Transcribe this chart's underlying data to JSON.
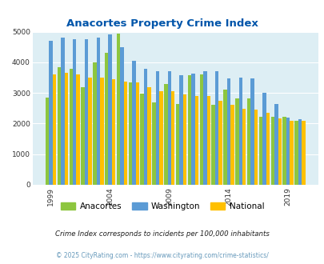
{
  "title": "Anacortes Property Crime Index",
  "years": [
    1999,
    2000,
    2001,
    2002,
    2003,
    2004,
    2005,
    2006,
    2007,
    2008,
    2009,
    2010,
    2011,
    2012,
    2013,
    2014,
    2015,
    2016,
    2017,
    2018,
    2019,
    2020
  ],
  "anacortes": [
    2850,
    3850,
    3800,
    3200,
    4000,
    4300,
    4950,
    3350,
    2980,
    2700,
    3300,
    2650,
    3580,
    3600,
    2600,
    3120,
    2820,
    2820,
    2220,
    2220,
    2220,
    2100
  ],
  "washington": [
    4700,
    4800,
    4750,
    4750,
    4800,
    4900,
    4500,
    4050,
    3800,
    3700,
    3700,
    3580,
    3620,
    3700,
    3700,
    3480,
    3500,
    3480,
    3000,
    2650,
    2200,
    2150
  ],
  "national": [
    3600,
    3650,
    3600,
    3500,
    3500,
    3450,
    3380,
    3350,
    3200,
    3050,
    3050,
    2950,
    2900,
    2900,
    2750,
    2620,
    2480,
    2450,
    2350,
    2180,
    2080,
    2080
  ],
  "anacortes_color": "#8dc63f",
  "washington_color": "#5b9bd5",
  "national_color": "#ffc000",
  "bg_color": "#ddeef4",
  "plot_bg_color": "#ddeef4",
  "title_color": "#0055aa",
  "grid_color": "#ffffff",
  "ylabel_max": 5000,
  "yticks": [
    0,
    1000,
    2000,
    3000,
    4000,
    5000
  ],
  "footnote1": "Crime Index corresponds to incidents per 100,000 inhabitants",
  "footnote2": "© 2025 CityRating.com - https://www.cityrating.com/crime-statistics/",
  "xtick_years": [
    1999,
    2004,
    2009,
    2014,
    2019
  ],
  "legend_labels": [
    "Anacortes",
    "Washington",
    "National"
  ]
}
